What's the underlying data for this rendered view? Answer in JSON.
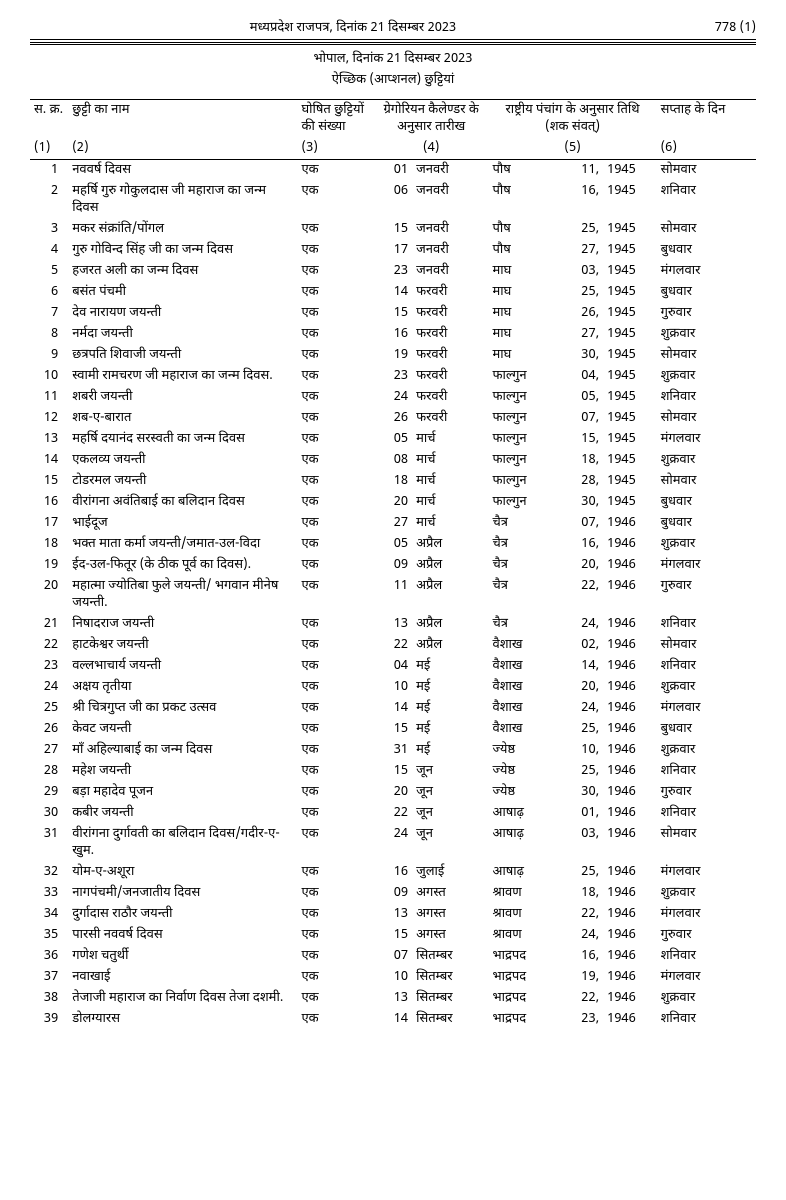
{
  "header": {
    "gazette_title": "मध्यप्रदेश राजपत्र, दिनांक 21 दिसम्बर 2023",
    "page_number": "778 (1)",
    "place_date": "भोपाल, दिनांक 21 दिसम्बर 2023",
    "section_title": "ऐच्छिक (आप्शनल) छुट्टियां"
  },
  "columns": {
    "c1": "स. क्र.",
    "c2": "छुट्टी का नाम",
    "c3": "घोषित छुट्टियों की संख्या",
    "c4": "ग्रेगोरियन कैलेण्डर के अनुसार तारीख",
    "c5": "राष्ट्रीय पंचांग के अनुसार तिथि (शक संवत्)",
    "c6": "सप्ताह के दिन",
    "n1": "(1)",
    "n2": "(2)",
    "n3": "(3)",
    "n4": "(4)",
    "n5": "(5)",
    "n6": "(6)"
  },
  "rows": [
    {
      "sn": "1",
      "name": "नववर्ष दिवस",
      "cnt": "एक",
      "dd": "01",
      "mm": "जनवरी",
      "hm": "पौष",
      "hd": "11,",
      "hy": "1945",
      "day": "सोमवार"
    },
    {
      "sn": "2",
      "name": "महर्षि गुरु गोकुलदास जी महाराज का जन्म दिवस",
      "cnt": "एक",
      "dd": "06",
      "mm": "जनवरी",
      "hm": "पौष",
      "hd": "16,",
      "hy": "1945",
      "day": "शनिवार"
    },
    {
      "sn": "3",
      "name": "मकर संक्रांति/पोंगल",
      "cnt": "एक",
      "dd": "15",
      "mm": "जनवरी",
      "hm": "पौष",
      "hd": "25,",
      "hy": "1945",
      "day": "सोमवार"
    },
    {
      "sn": "4",
      "name": "गुरु गोविन्द सिंह जी का जन्म दिवस",
      "cnt": "एक",
      "dd": "17",
      "mm": "जनवरी",
      "hm": "पौष",
      "hd": "27,",
      "hy": "1945",
      "day": "बुधवार"
    },
    {
      "sn": "5",
      "name": "हजरत अली का जन्म दिवस",
      "cnt": "एक",
      "dd": "23",
      "mm": "जनवरी",
      "hm": "माघ",
      "hd": "03,",
      "hy": "1945",
      "day": "मंगलवार"
    },
    {
      "sn": "6",
      "name": "बसंत पंचमी",
      "cnt": "एक",
      "dd": "14",
      "mm": "फरवरी",
      "hm": "माघ",
      "hd": "25,",
      "hy": "1945",
      "day": "बुधवार"
    },
    {
      "sn": "7",
      "name": "देव नारायण जयन्ती",
      "cnt": "एक",
      "dd": "15",
      "mm": "फरवरी",
      "hm": "माघ",
      "hd": "26,",
      "hy": "1945",
      "day": "गुरुवार"
    },
    {
      "sn": "8",
      "name": "नर्मदा जयन्ती",
      "cnt": "एक",
      "dd": "16",
      "mm": "फरवरी",
      "hm": "माघ",
      "hd": "27,",
      "hy": "1945",
      "day": "शुक्रवार"
    },
    {
      "sn": "9",
      "name": "छत्रपति शिवाजी जयन्ती",
      "cnt": "एक",
      "dd": "19",
      "mm": "फरवरी",
      "hm": "माघ",
      "hd": "30,",
      "hy": "1945",
      "day": "सोमवार"
    },
    {
      "sn": "10",
      "name": "स्वामी रामचरण जी महाराज का जन्म दिवस.",
      "cnt": "एक",
      "dd": "23",
      "mm": "फरवरी",
      "hm": "फाल्गुन",
      "hd": "04,",
      "hy": "1945",
      "day": "शुक्रवार"
    },
    {
      "sn": "11",
      "name": "शबरी जयन्ती",
      "cnt": "एक",
      "dd": "24",
      "mm": "फरवरी",
      "hm": "फाल्गुन",
      "hd": "05,",
      "hy": "1945",
      "day": "शनिवार"
    },
    {
      "sn": "12",
      "name": "शब-ए-बारात",
      "cnt": "एक",
      "dd": "26",
      "mm": "फरवरी",
      "hm": "फाल्गुन",
      "hd": "07,",
      "hy": "1945",
      "day": "सोमवार"
    },
    {
      "sn": "13",
      "name": "महर्षि दयानंद सरस्वती का जन्म दिवस",
      "cnt": "एक",
      "dd": "05",
      "mm": "मार्च",
      "hm": "फाल्गुन",
      "hd": "15,",
      "hy": "1945",
      "day": "मंगलवार"
    },
    {
      "sn": "14",
      "name": "एकलव्य जयन्ती",
      "cnt": "एक",
      "dd": "08",
      "mm": "मार्च",
      "hm": "फाल्गुन",
      "hd": "18,",
      "hy": "1945",
      "day": "शुक्रवार"
    },
    {
      "sn": "15",
      "name": "टोडरमल जयन्ती",
      "cnt": "एक",
      "dd": "18",
      "mm": "मार्च",
      "hm": "फाल्गुन",
      "hd": "28,",
      "hy": "1945",
      "day": "सोमवार"
    },
    {
      "sn": "16",
      "name": "वीरांगना अवंतिबाई का बलिदान दिवस",
      "cnt": "एक",
      "dd": "20",
      "mm": "मार्च",
      "hm": "फाल्गुन",
      "hd": "30,",
      "hy": "1945",
      "day": "बुधवार"
    },
    {
      "sn": "17",
      "name": "भाईदूज",
      "cnt": "एक",
      "dd": "27",
      "mm": "मार्च",
      "hm": "चैत्र",
      "hd": "07,",
      "hy": "1946",
      "day": "बुधवार"
    },
    {
      "sn": "18",
      "name": "भक्त माता कर्मा जयन्ती/जमात-उल-विदा",
      "cnt": "एक",
      "dd": "05",
      "mm": "अप्रैल",
      "hm": "चैत्र",
      "hd": "16,",
      "hy": "1946",
      "day": "शुक्रवार"
    },
    {
      "sn": "19",
      "name": "ईद-उल-फितूर (के ठीक पूर्व का दिवस).",
      "cnt": "एक",
      "dd": "09",
      "mm": "अप्रैल",
      "hm": "चैत्र",
      "hd": "20,",
      "hy": "1946",
      "day": "मंगलवार"
    },
    {
      "sn": "20",
      "name": "महात्मा ज्योतिबा फुले जयन्ती/ भगवान मीनेष जयन्ती.",
      "cnt": "एक",
      "dd": "11",
      "mm": "अप्रैल",
      "hm": "चैत्र",
      "hd": "22,",
      "hy": "1946",
      "day": "गुरुवार"
    },
    {
      "sn": "21",
      "name": "निषादराज जयन्ती",
      "cnt": "एक",
      "dd": "13",
      "mm": "अप्रैल",
      "hm": "चैत्र",
      "hd": "24,",
      "hy": "1946",
      "day": "शनिवार"
    },
    {
      "sn": "22",
      "name": "हाटकेश्वर जयन्ती",
      "cnt": "एक",
      "dd": "22",
      "mm": "अप्रैल",
      "hm": "वैशाख",
      "hd": "02,",
      "hy": "1946",
      "day": "सोमवार"
    },
    {
      "sn": "23",
      "name": "वल्लभाचार्य जयन्ती",
      "cnt": "एक",
      "dd": "04",
      "mm": "मई",
      "hm": "वैशाख",
      "hd": "14,",
      "hy": "1946",
      "day": "शनिवार"
    },
    {
      "sn": "24",
      "name": "अक्षय तृतीया",
      "cnt": "एक",
      "dd": "10",
      "mm": "मई",
      "hm": "वैशाख",
      "hd": "20,",
      "hy": "1946",
      "day": "शुक्रवार"
    },
    {
      "sn": "25",
      "name": "श्री चित्रगुप्त जी का प्रकट उत्सव",
      "cnt": "एक",
      "dd": "14",
      "mm": "मई",
      "hm": "वैशाख",
      "hd": "24,",
      "hy": "1946",
      "day": "मंगलवार"
    },
    {
      "sn": "26",
      "name": "केवट जयन्ती",
      "cnt": "एक",
      "dd": "15",
      "mm": "मई",
      "hm": "वैशाख",
      "hd": "25,",
      "hy": "1946",
      "day": "बुधवार"
    },
    {
      "sn": "27",
      "name": "माँ अहिल्याबाई का जन्म दिवस",
      "cnt": "एक",
      "dd": "31",
      "mm": "मई",
      "hm": "ज्येष्ठ",
      "hd": "10,",
      "hy": "1946",
      "day": "शुक्रवार"
    },
    {
      "sn": "28",
      "name": "महेश जयन्ती",
      "cnt": "एक",
      "dd": "15",
      "mm": "जून",
      "hm": "ज्येष्ठ",
      "hd": "25,",
      "hy": "1946",
      "day": "शनिवार"
    },
    {
      "sn": "29",
      "name": "बड़ा महादेव पूजन",
      "cnt": "एक",
      "dd": "20",
      "mm": "जून",
      "hm": "ज्येष्ठ",
      "hd": "30,",
      "hy": "1946",
      "day": "गुरुवार"
    },
    {
      "sn": "30",
      "name": "कबीर जयन्ती",
      "cnt": "एक",
      "dd": "22",
      "mm": "जून",
      "hm": "आषाढ़",
      "hd": "01,",
      "hy": "1946",
      "day": "शनिवार"
    },
    {
      "sn": "31",
      "name": "वीरांगना दुर्गावती का बलिदान दिवस/गदीर-ए-खुम.",
      "cnt": "एक",
      "dd": "24",
      "mm": "जून",
      "hm": "आषाढ़",
      "hd": "03,",
      "hy": "1946",
      "day": "सोमवार"
    },
    {
      "sn": "32",
      "name": "योम-ए-अशूरा",
      "cnt": "एक",
      "dd": "16",
      "mm": "जुलाई",
      "hm": "आषाढ़",
      "hd": "25,",
      "hy": "1946",
      "day": "मंगलवार"
    },
    {
      "sn": "33",
      "name": "नागपंचमी/जनजातीय दिवस",
      "cnt": "एक",
      "dd": "09",
      "mm": "अगस्त",
      "hm": "श्रावण",
      "hd": "18,",
      "hy": "1946",
      "day": "शुक्रवार"
    },
    {
      "sn": "34",
      "name": "दुर्गादास राठौर जयन्ती",
      "cnt": "एक",
      "dd": "13",
      "mm": "अगस्त",
      "hm": "श्रावण",
      "hd": "22,",
      "hy": "1946",
      "day": "मंगलवार"
    },
    {
      "sn": "35",
      "name": "पारसी नववर्ष दिवस",
      "cnt": "एक",
      "dd": "15",
      "mm": "अगस्त",
      "hm": "श्रावण",
      "hd": "24,",
      "hy": "1946",
      "day": "गुरुवार"
    },
    {
      "sn": "36",
      "name": "गणेश चतुर्थी",
      "cnt": "एक",
      "dd": "07",
      "mm": "सितम्बर",
      "hm": "भाद्रपद",
      "hd": "16,",
      "hy": "1946",
      "day": "शनिवार"
    },
    {
      "sn": "37",
      "name": "नवाखाई",
      "cnt": "एक",
      "dd": "10",
      "mm": "सितम्बर",
      "hm": "भाद्रपद",
      "hd": "19,",
      "hy": "1946",
      "day": "मंगलवार"
    },
    {
      "sn": "38",
      "name": "तेजाजी महाराज का निर्वाण दिवस तेजा दशमी.",
      "cnt": "एक",
      "dd": "13",
      "mm": "सितम्बर",
      "hm": "भाद्रपद",
      "hd": "22,",
      "hy": "1946",
      "day": "शुक्रवार"
    },
    {
      "sn": "39",
      "name": "डोलग्यारस",
      "cnt": "एक",
      "dd": "14",
      "mm": "सितम्बर",
      "hm": "भाद्रपद",
      "hd": "23,",
      "hy": "1946",
      "day": "शनिवार"
    }
  ]
}
